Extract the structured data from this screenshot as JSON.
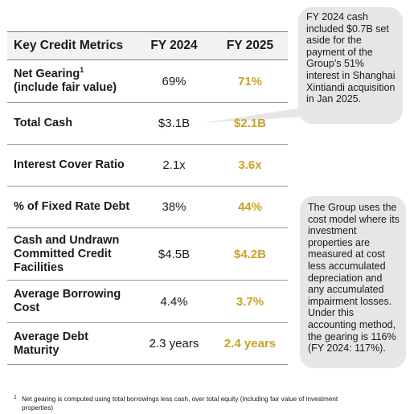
{
  "table": {
    "headers": {
      "metric": "Key Credit Metrics",
      "fy2024": "FY 2024",
      "fy2025": "FY 2025"
    },
    "rows": [
      {
        "label": "Net Gearing",
        "note": "(include fair value)",
        "footnote_ref": "1",
        "fy2024": "69%",
        "fy2025": "71%"
      },
      {
        "label": "Total Cash",
        "fy2024": "$3.1B",
        "fy2025": "$2.1B"
      },
      {
        "label": "Interest Cover Ratio",
        "fy2024": "2.1x",
        "fy2025": "3.6x"
      },
      {
        "label": "% of Fixed Rate Debt",
        "fy2024": "38%",
        "fy2025": "44%"
      },
      {
        "label": "Cash and Undrawn Committed Credit Facilities",
        "fy2024": "$4.5B",
        "fy2025": "$4.2B"
      },
      {
        "label": "Average Borrowing Cost",
        "fy2024": "4.4%",
        "fy2025": "3.7%"
      },
      {
        "label": "Average Debt Maturity",
        "fy2024": "2.3 years",
        "fy2025": "2.4 years"
      }
    ]
  },
  "callouts": {
    "total_cash": "FY 2024 cash included $0.7B set aside for the payment of the Group’s 51% interest in Shanghai Xintiandi acquisition in Jan 2025.",
    "gearing_method": "The Group uses the cost model where its investment properties are measured at cost less accumulated depreciation and any accumulated impairment losses. Under this accounting method, the gearing is 116% (FY 2024: 117%)."
  },
  "footnote": {
    "mark": "1",
    "text": "Net gearing is computed using total borrowings less cash, over total equity (including fair value of investment properties)"
  },
  "colors": {
    "fy2025_accent": "#c9a227",
    "header_bg": "#f2f2f2",
    "callout_bg": "#e6e6e6",
    "rule": "#9a9a9a"
  }
}
